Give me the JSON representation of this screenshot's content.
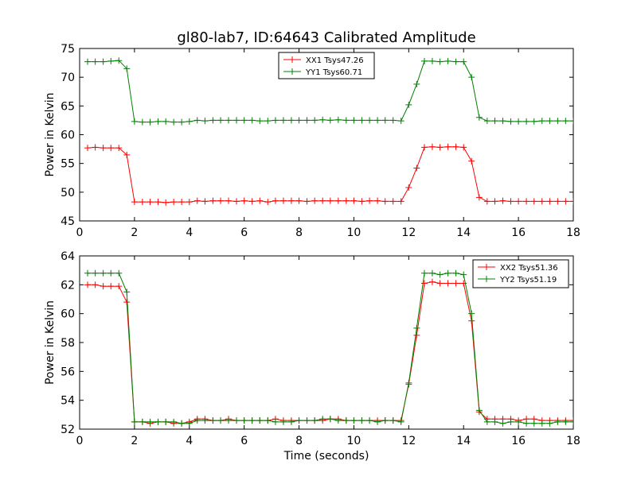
{
  "figure": {
    "title": "gl80-lab7, ID:64643 Calibrated Amplitude",
    "xlabel": "Time (seconds)"
  },
  "chart_data": [
    {
      "type": "line",
      "ylabel": "Power in Kelvin",
      "xlim": [
        0,
        18
      ],
      "ylim": [
        45,
        75
      ],
      "xticks": [
        0,
        2,
        4,
        6,
        8,
        10,
        12,
        14,
        16,
        18
      ],
      "yticks": [
        45,
        50,
        55,
        60,
        65,
        70,
        75
      ],
      "legend_position": "top-center",
      "x": [
        0.29,
        0.57,
        0.86,
        1.14,
        1.43,
        1.72,
        2.0,
        2.29,
        2.57,
        2.86,
        3.14,
        3.43,
        3.72,
        4.0,
        4.29,
        4.57,
        4.86,
        5.14,
        5.43,
        5.72,
        6.0,
        6.29,
        6.57,
        6.86,
        7.14,
        7.43,
        7.72,
        8.0,
        8.29,
        8.57,
        8.86,
        9.14,
        9.43,
        9.72,
        10.0,
        10.29,
        10.57,
        10.86,
        11.14,
        11.43,
        11.72,
        12.0,
        12.29,
        12.57,
        12.86,
        13.14,
        13.43,
        13.72,
        14.0,
        14.29,
        14.57,
        14.86,
        15.14,
        15.43,
        15.72,
        16.0,
        16.29,
        16.57,
        16.86,
        17.14,
        17.43,
        17.72,
        18.0
      ],
      "series": [
        {
          "name": "XX1 Tsys47.26",
          "color": "#ff0000",
          "values": [
            57.7,
            57.8,
            57.7,
            57.7,
            57.7,
            56.5,
            48.3,
            48.3,
            48.3,
            48.3,
            48.2,
            48.3,
            48.3,
            48.3,
            48.5,
            48.4,
            48.5,
            48.5,
            48.5,
            48.4,
            48.5,
            48.4,
            48.5,
            48.3,
            48.5,
            48.5,
            48.5,
            48.5,
            48.4,
            48.5,
            48.5,
            48.5,
            48.5,
            48.5,
            48.5,
            48.4,
            48.5,
            48.5,
            48.4,
            48.4,
            48.4,
            50.8,
            54.2,
            57.8,
            57.9,
            57.8,
            57.9,
            57.9,
            57.8,
            55.4,
            49.1,
            48.4,
            48.4,
            48.5,
            48.4,
            48.4,
            48.4,
            48.4,
            48.4,
            48.4,
            48.4,
            48.4,
            48.4
          ]
        },
        {
          "name": "YY1 Tsys60.71",
          "color": "#008000",
          "values": [
            72.7,
            72.7,
            72.7,
            72.8,
            72.9,
            71.5,
            62.3,
            62.2,
            62.2,
            62.3,
            62.3,
            62.2,
            62.2,
            62.3,
            62.5,
            62.4,
            62.5,
            62.5,
            62.5,
            62.5,
            62.5,
            62.5,
            62.4,
            62.4,
            62.5,
            62.5,
            62.5,
            62.5,
            62.5,
            62.5,
            62.6,
            62.5,
            62.6,
            62.5,
            62.5,
            62.5,
            62.5,
            62.5,
            62.5,
            62.5,
            62.4,
            65.2,
            68.8,
            72.8,
            72.8,
            72.7,
            72.8,
            72.7,
            72.7,
            70.0,
            63.0,
            62.4,
            62.4,
            62.4,
            62.3,
            62.3,
            62.3,
            62.3,
            62.4,
            62.4,
            62.4,
            62.4,
            62.4
          ]
        }
      ]
    },
    {
      "type": "line",
      "ylabel": "Power in Kelvin",
      "xlabel": "Time (seconds)",
      "xlim": [
        0,
        18
      ],
      "ylim": [
        52,
        64
      ],
      "xticks": [
        0,
        2,
        4,
        6,
        8,
        10,
        12,
        14,
        16,
        18
      ],
      "yticks": [
        52,
        54,
        56,
        58,
        60,
        62,
        64
      ],
      "legend_position": "top-right",
      "x": [
        0.29,
        0.57,
        0.86,
        1.14,
        1.43,
        1.72,
        2.0,
        2.29,
        2.57,
        2.86,
        3.14,
        3.43,
        3.72,
        4.0,
        4.29,
        4.57,
        4.86,
        5.14,
        5.43,
        5.72,
        6.0,
        6.29,
        6.57,
        6.86,
        7.14,
        7.43,
        7.72,
        8.0,
        8.29,
        8.57,
        8.86,
        9.14,
        9.43,
        9.72,
        10.0,
        10.29,
        10.57,
        10.86,
        11.14,
        11.43,
        11.72,
        12.0,
        12.29,
        12.57,
        12.86,
        13.14,
        13.43,
        13.72,
        14.0,
        14.29,
        14.57,
        14.86,
        15.14,
        15.43,
        15.72,
        16.0,
        16.29,
        16.57,
        16.86,
        17.14,
        17.43,
        17.72,
        18.0
      ],
      "series": [
        {
          "name": "XX2 Tsys51.36",
          "color": "#ff0000",
          "values": [
            62.0,
            62.0,
            61.9,
            61.9,
            61.9,
            60.8,
            52.5,
            52.5,
            52.4,
            52.5,
            52.5,
            52.4,
            52.4,
            52.5,
            52.7,
            52.7,
            52.6,
            52.6,
            52.7,
            52.6,
            52.6,
            52.6,
            52.6,
            52.6,
            52.7,
            52.6,
            52.6,
            52.6,
            52.6,
            52.6,
            52.6,
            52.7,
            52.7,
            52.6,
            52.6,
            52.6,
            52.6,
            52.6,
            52.6,
            52.6,
            52.6,
            55.1,
            58.5,
            62.1,
            62.2,
            62.1,
            62.1,
            62.1,
            62.1,
            59.5,
            53.2,
            52.7,
            52.7,
            52.7,
            52.7,
            52.6,
            52.7,
            52.7,
            52.6,
            52.6,
            52.6,
            52.6,
            52.6
          ]
        },
        {
          "name": "YY2 Tsys51.19",
          "color": "#008000",
          "values": [
            62.8,
            62.8,
            62.8,
            62.8,
            62.8,
            61.5,
            52.5,
            52.5,
            52.5,
            52.5,
            52.5,
            52.5,
            52.4,
            52.4,
            52.6,
            52.6,
            52.6,
            52.6,
            52.6,
            52.6,
            52.6,
            52.6,
            52.6,
            52.6,
            52.5,
            52.5,
            52.5,
            52.6,
            52.6,
            52.6,
            52.7,
            52.7,
            52.6,
            52.6,
            52.6,
            52.6,
            52.6,
            52.5,
            52.6,
            52.6,
            52.5,
            55.2,
            59.0,
            62.8,
            62.8,
            62.7,
            62.8,
            62.8,
            62.7,
            60.0,
            53.3,
            52.5,
            52.5,
            52.4,
            52.5,
            52.5,
            52.4,
            52.4,
            52.4,
            52.4,
            52.5,
            52.5,
            52.5
          ]
        }
      ]
    }
  ]
}
